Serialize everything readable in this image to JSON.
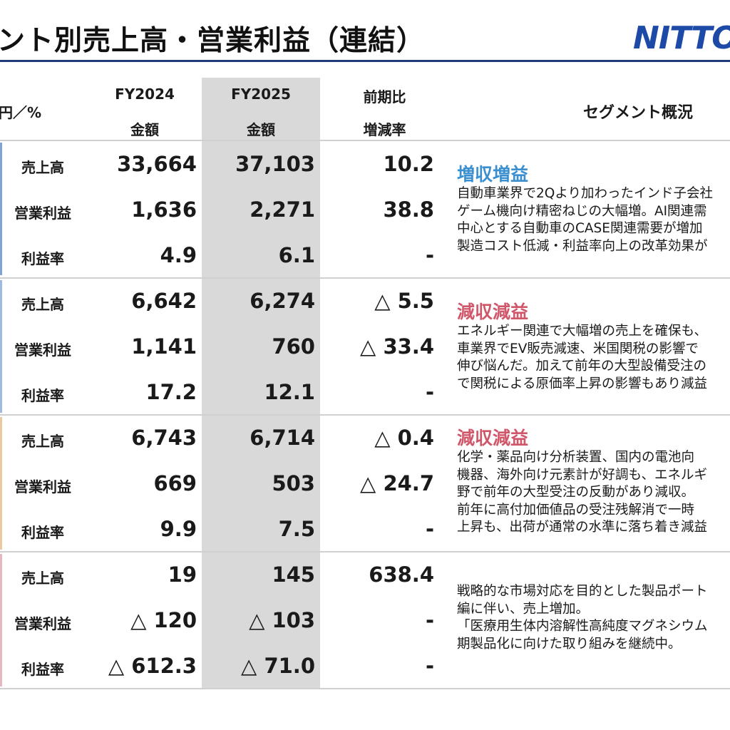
{
  "header": {
    "title": "ント別売上高・営業利益（連結）",
    "logo": "NITTOS"
  },
  "table": {
    "unit": "円／%",
    "columns": {
      "fy2024_label": "FY2024",
      "fy2024_sub": "金額",
      "fy2025_label": "FY2025",
      "fy2025_sub": "金額",
      "yoy_label": "前期比",
      "yoy_sub": "増減率"
    },
    "overview_header": "セグメント概況",
    "segments": [
      {
        "rows": [
          {
            "label": "売上高",
            "fy2024": "33,664",
            "fy2025": "37,103",
            "yoy": "10.2"
          },
          {
            "label": "営業利益",
            "fy2024": "1,636",
            "fy2025": "2,271",
            "yoy": "38.8"
          },
          {
            "label": "利益率",
            "fy2024": "4.9",
            "fy2025": "6.1",
            "yoy": "-"
          }
        ],
        "heading": "増収増益",
        "text": [
          "自動車業界で2Qより加わったインド子会社",
          "ゲーム機向け精密ねじの大幅増。AI関連需",
          "中心とする自動車のCASE関連需要が増加",
          "製造コスト低減・利益率向上の改革効果が"
        ]
      },
      {
        "rows": [
          {
            "label": "売上高",
            "fy2024": "6,642",
            "fy2025": "6,274",
            "yoy": "△ 5.5"
          },
          {
            "label": "営業利益",
            "fy2024": "1,141",
            "fy2025": "760",
            "yoy": "△ 33.4"
          },
          {
            "label": "利益率",
            "fy2024": "17.2",
            "fy2025": "12.1",
            "yoy": "-"
          }
        ],
        "heading": "減収減益",
        "text": [
          "エネルギー関連で大幅増の売上を確保も、",
          "車業界でEV販売減速、米国関税の影響で",
          "伸び悩んだ。加えて前年の大型設備受注の",
          "で関税による原価率上昇の影響もあり減益"
        ]
      },
      {
        "rows": [
          {
            "label": "売上高",
            "fy2024": "6,743",
            "fy2025": "6,714",
            "yoy": "△ 0.4"
          },
          {
            "label": "営業利益",
            "fy2024": "669",
            "fy2025": "503",
            "yoy": "△ 24.7"
          },
          {
            "label": "利益率",
            "fy2024": "9.9",
            "fy2025": "7.5",
            "yoy": "-"
          }
        ],
        "heading": "減収減益",
        "text": [
          "化学・薬品向け分析装置、国内の電池向",
          "機器、海外向け元素計が好調も、エネルギ",
          "野で前年の大型受注の反動があり減収。",
          "前年に高付加価値品の受注残解消で一時",
          "上昇も、出荷が通常の水準に落ち着き減益"
        ]
      },
      {
        "rows": [
          {
            "label": "売上高",
            "fy2024": "19",
            "fy2025": "145",
            "yoy": "638.4"
          },
          {
            "label": "営業利益",
            "fy2024": "△ 120",
            "fy2025": "△ 103",
            "yoy": "-"
          },
          {
            "label": "利益率",
            "fy2024": "△ 612.3",
            "fy2025": "△ 71.0",
            "yoy": "-"
          }
        ],
        "heading": "",
        "text": [
          "戦略的な市場対応を目的とした製品ポート",
          "編に伴い、売上増加。",
          "「医療用生体内溶解性高純度マグネシウム",
          "期製品化に向けた取り組みを継続中。"
        ]
      }
    ]
  },
  "colors": {
    "rule": "#1f3b78",
    "heading_positive": "#3a8fd0",
    "heading_negative": "#d0566a",
    "highlight": "#d9d9d9",
    "logo": "#1d4aa6"
  }
}
